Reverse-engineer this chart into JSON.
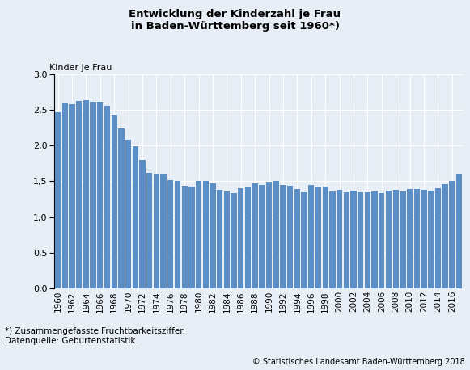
{
  "title_line1": "Entwicklung der Kinderzahl je Frau",
  "title_line2": "in Baden-Württemberg seit 1960*)",
  "ylabel": "Kinder je Frau",
  "footnote1": "*) Zusammengefasste Fruchtbarkeitsziffer.",
  "footnote2": "Datenquelle: Geburtenstatistik.",
  "copyright": "© Statistisches Landesamt Baden-Württemberg 2018",
  "bar_color": "#5b8ec4",
  "background_color": "#e8eef5",
  "plot_bg_color": "#e8eef5",
  "ylim": [
    0,
    3.0
  ],
  "yticks": [
    0.0,
    0.5,
    1.0,
    1.5,
    2.0,
    2.5,
    3.0
  ],
  "years": [
    1960,
    1961,
    1962,
    1963,
    1964,
    1965,
    1966,
    1967,
    1968,
    1969,
    1970,
    1971,
    1972,
    1973,
    1974,
    1975,
    1976,
    1977,
    1978,
    1979,
    1980,
    1981,
    1982,
    1983,
    1984,
    1985,
    1986,
    1987,
    1988,
    1989,
    1990,
    1991,
    1992,
    1993,
    1994,
    1995,
    1996,
    1997,
    1998,
    1999,
    2000,
    2001,
    2002,
    2003,
    2004,
    2005,
    2006,
    2007,
    2008,
    2009,
    2010,
    2011,
    2012,
    2013,
    2014,
    2015,
    2016,
    2017
  ],
  "values": [
    2.46,
    2.59,
    2.58,
    2.62,
    2.63,
    2.61,
    2.61,
    2.56,
    2.43,
    2.24,
    2.08,
    1.99,
    1.8,
    1.62,
    1.6,
    1.59,
    1.52,
    1.51,
    1.44,
    1.43,
    1.51,
    1.5,
    1.47,
    1.38,
    1.36,
    1.34,
    1.4,
    1.42,
    1.47,
    1.45,
    1.49,
    1.5,
    1.45,
    1.44,
    1.39,
    1.35,
    1.45,
    1.41,
    1.43,
    1.36,
    1.38,
    1.35,
    1.37,
    1.35,
    1.35,
    1.36,
    1.34,
    1.37,
    1.38,
    1.36,
    1.39,
    1.39,
    1.38,
    1.37,
    1.4,
    1.46,
    1.51,
    1.6
  ]
}
